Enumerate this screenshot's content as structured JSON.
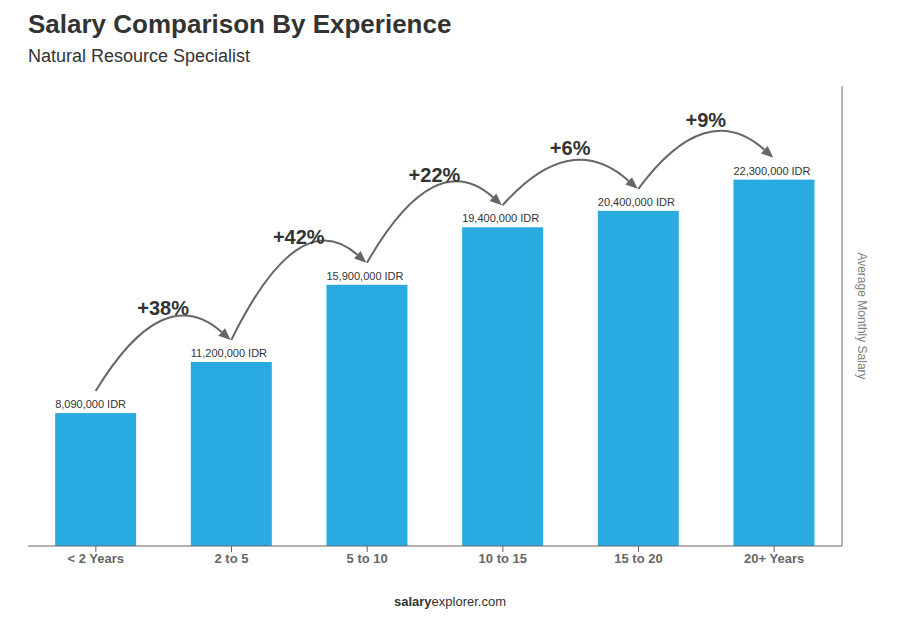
{
  "chart_data": {
    "type": "bar",
    "title": "Salary Comparison By Experience",
    "subtitle": "Natural Resource Specialist",
    "ylabel": "Average Monthly Salary",
    "footer": [
      "salary",
      "explorer.com"
    ],
    "categories": [
      "< 2 Years",
      "2 to 5",
      "5 to 10",
      "10 to 15",
      "15 to 20",
      "20+ Years"
    ],
    "values": [
      8090000,
      11200000,
      15900000,
      19400000,
      20400000,
      22300000
    ],
    "value_labels": [
      "8,090,000 IDR",
      "11,200,000 IDR",
      "15,900,000 IDR",
      "19,400,000 IDR",
      "20,400,000 IDR",
      "22,300,000 IDR"
    ],
    "data_labels": true,
    "annotations": [
      {
        "from": "< 2 Years",
        "to": "2 to 5",
        "label": "+38%"
      },
      {
        "from": "2 to 5",
        "to": "5 to 10",
        "label": "+42%"
      },
      {
        "from": "5 to 10",
        "to": "10 to 15",
        "label": "+22%"
      },
      {
        "from": "10 to 15",
        "to": "15 to 20",
        "label": "+6%"
      },
      {
        "from": "15 to 20",
        "to": "20+ Years",
        "label": "+9%"
      }
    ],
    "color": "#29ABE2",
    "ylim": [
      0,
      28000000
    ],
    "tick_labels": "x",
    "grid": false
  }
}
